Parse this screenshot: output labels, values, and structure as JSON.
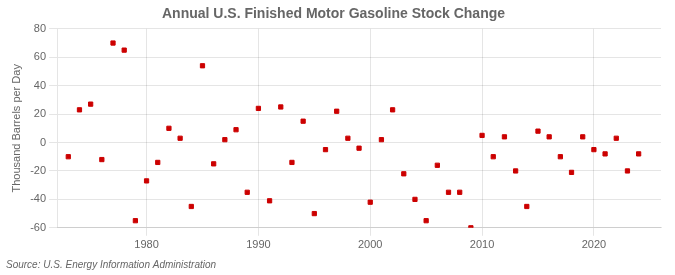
{
  "chart_data": {
    "type": "scatter",
    "title": "Annual U.S. Finished Motor Gasoline Stock Change",
    "ylabel": "Thousand Barrels per Day",
    "annotations": [
      "Source: U.S. Energy Information Administration"
    ],
    "x": [
      1973,
      1974,
      1975,
      1976,
      1977,
      1978,
      1979,
      1980,
      1981,
      1982,
      1983,
      1984,
      1985,
      1986,
      1987,
      1988,
      1989,
      1990,
      1991,
      1992,
      1993,
      1994,
      1995,
      1996,
      1997,
      1998,
      1999,
      2000,
      2001,
      2002,
      2003,
      2004,
      2005,
      2006,
      2007,
      2008,
      2009,
      2010,
      2011,
      2012,
      2013,
      2014,
      2015,
      2016,
      2017,
      2018,
      2019,
      2020,
      2021,
      2022,
      2023,
      2024
    ],
    "values": [
      -10,
      23,
      27,
      -12,
      70,
      65,
      -55,
      -27,
      -14,
      10,
      3,
      -45,
      54,
      -15,
      2,
      9,
      -35,
      24,
      -41,
      25,
      -14,
      15,
      -50,
      -5,
      22,
      3,
      -4,
      -42,
      2,
      23,
      -22,
      -40,
      -55,
      -16,
      -35,
      -35,
      -60,
      5,
      -10,
      4,
      -20,
      -45,
      8,
      4,
      -10,
      -21,
      4,
      -5,
      -8,
      3,
      -20,
      -8
    ],
    "color": "#cc0000",
    "marker": "square",
    "xlim": [
      1972,
      2026
    ],
    "xticks": [
      1980,
      1990,
      2000,
      2010,
      2020
    ],
    "ylim": [
      -60,
      80
    ],
    "yticks": [
      -60,
      -40,
      -20,
      0,
      20,
      40,
      60,
      80
    ],
    "grid": true
  }
}
